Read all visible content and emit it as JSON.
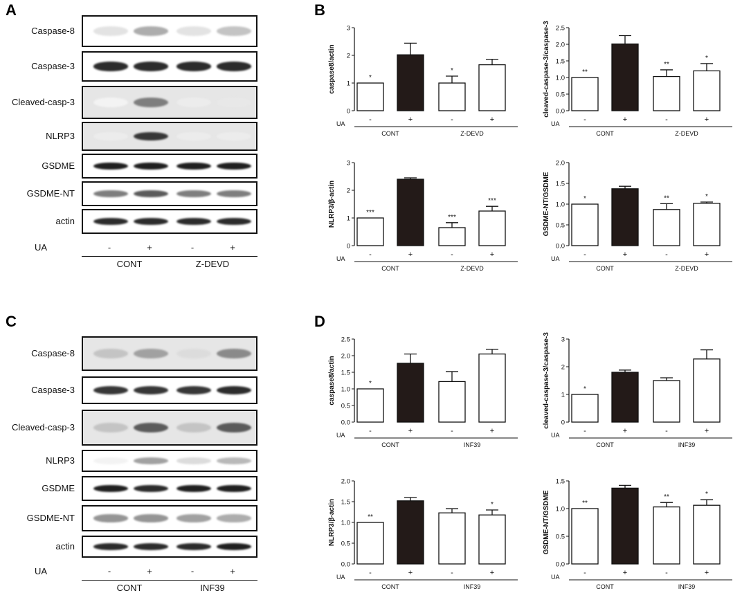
{
  "panels": {
    "A": "A",
    "B": "B",
    "C": "C",
    "D": "D"
  },
  "blots": [
    {
      "id": "A",
      "rows": [
        "Caspase-8",
        "Caspase-3",
        "Cleaved-casp-3",
        "NLRP3",
        "GSDME",
        "GSDME-NT",
        "actin"
      ],
      "treatment_label": "UA",
      "signs": [
        "-",
        "+",
        "-",
        "+"
      ],
      "groups": [
        "CONT",
        "Z-DEVD"
      ]
    },
    {
      "id": "C",
      "rows": [
        "Caspase-8",
        "Caspase-3",
        "Cleaved-casp-3",
        "NLRP3",
        "GSDME",
        "GSDME-NT",
        "actin"
      ],
      "treatment_label": "UA",
      "signs": [
        "-",
        "+",
        "-",
        "+"
      ],
      "groups": [
        "CONT",
        "INF39"
      ]
    }
  ],
  "chart_data": [
    {
      "panel": "B",
      "type": "bar",
      "ylabel": "caspase8/actin",
      "ylim": [
        0,
        3
      ],
      "yticks": [
        "0",
        "1",
        "2",
        "3"
      ],
      "treatment_label": "UA",
      "signs": [
        "-",
        "+",
        "-",
        "+"
      ],
      "groups": [
        "CONT",
        "Z-DEVD"
      ],
      "values": [
        1.0,
        2.02,
        1.0,
        1.66
      ],
      "errors": [
        0,
        0.42,
        0.25,
        0.2
      ],
      "significance": [
        "*",
        "",
        "*",
        ""
      ],
      "bar_fill": [
        "#ffffff",
        "#231a18",
        "#ffffff",
        "#ffffff"
      ]
    },
    {
      "panel": "B",
      "type": "bar",
      "ylabel": "cleaved-caspase-3/caspase-3",
      "ylim": [
        0,
        2.5
      ],
      "yticks": [
        "0.0",
        "0.5",
        "1.0",
        "1.5",
        "2.0",
        "2.5"
      ],
      "treatment_label": "UA",
      "signs": [
        "-",
        "+",
        "-",
        "+"
      ],
      "groups": [
        "CONT",
        "Z-DEVD"
      ],
      "values": [
        1.0,
        2.01,
        1.03,
        1.2
      ],
      "errors": [
        0,
        0.25,
        0.2,
        0.22
      ],
      "significance": [
        "**",
        "",
        "**",
        "*"
      ],
      "bar_fill": [
        "#ffffff",
        "#231a18",
        "#ffffff",
        "#ffffff"
      ]
    },
    {
      "panel": "B",
      "type": "bar",
      "ylabel": "NLRP3/β-actin",
      "ylim": [
        0,
        3
      ],
      "yticks": [
        "0",
        "1",
        "2",
        "3"
      ],
      "treatment_label": "UA",
      "signs": [
        "-",
        "+",
        "-",
        "+"
      ],
      "groups": [
        "CONT",
        "Z-DEVD"
      ],
      "values": [
        1.0,
        2.4,
        0.65,
        1.25
      ],
      "errors": [
        0,
        0.05,
        0.18,
        0.17
      ],
      "significance": [
        "***",
        "",
        "***",
        "***"
      ],
      "bar_fill": [
        "#ffffff",
        "#231a18",
        "#ffffff",
        "#ffffff"
      ]
    },
    {
      "panel": "B",
      "type": "bar",
      "ylabel": "GSDME-NT/GSDME",
      "ylim": [
        0,
        2.0
      ],
      "yticks": [
        "0.0",
        "0.5",
        "1.0",
        "1.5",
        "2.0"
      ],
      "treatment_label": "UA",
      "signs": [
        "-",
        "+",
        "-",
        "+"
      ],
      "groups": [
        "CONT",
        "Z-DEVD"
      ],
      "values": [
        1.0,
        1.37,
        0.87,
        1.02
      ],
      "errors": [
        0,
        0.06,
        0.14,
        0.03
      ],
      "significance": [
        "*",
        "",
        "**",
        "*"
      ],
      "bar_fill": [
        "#ffffff",
        "#231a18",
        "#ffffff",
        "#ffffff"
      ]
    },
    {
      "panel": "D",
      "type": "bar",
      "ylabel": "caspase8/actin",
      "ylim": [
        0,
        2.5
      ],
      "yticks": [
        "0.0",
        "0.5",
        "1.0",
        "1.5",
        "2.0",
        "2.5"
      ],
      "treatment_label": "UA",
      "signs": [
        "-",
        "+",
        "-",
        "+"
      ],
      "groups": [
        "CONT",
        "INF39"
      ],
      "values": [
        1.0,
        1.77,
        1.22,
        2.05
      ],
      "errors": [
        0,
        0.28,
        0.3,
        0.14
      ],
      "significance": [
        "*",
        "",
        "",
        ""
      ],
      "bar_fill": [
        "#ffffff",
        "#231a18",
        "#ffffff",
        "#ffffff"
      ]
    },
    {
      "panel": "D",
      "type": "bar",
      "ylabel": "cleaved-caspase-3/caspase-3",
      "ylim": [
        0,
        3
      ],
      "yticks": [
        "0",
        "1",
        "2",
        "3"
      ],
      "treatment_label": "UA",
      "signs": [
        "-",
        "+",
        "-",
        "+"
      ],
      "groups": [
        "CONT",
        "INF39"
      ],
      "values": [
        1.0,
        1.8,
        1.5,
        2.28
      ],
      "errors": [
        0,
        0.08,
        0.1,
        0.33
      ],
      "significance": [
        "*",
        "",
        "",
        ""
      ],
      "bar_fill": [
        "#ffffff",
        "#231a18",
        "#ffffff",
        "#ffffff"
      ]
    },
    {
      "panel": "D",
      "type": "bar",
      "ylabel": "NLRP3/β-actin",
      "ylim": [
        0,
        2.0
      ],
      "yticks": [
        "0.0",
        "0.5",
        "1.0",
        "1.5",
        "2.0"
      ],
      "treatment_label": "UA",
      "signs": [
        "-",
        "+",
        "-",
        "+"
      ],
      "groups": [
        "CONT",
        "INF39"
      ],
      "values": [
        1.0,
        1.52,
        1.23,
        1.18
      ],
      "errors": [
        0,
        0.08,
        0.1,
        0.12
      ],
      "significance": [
        "**",
        "",
        "",
        "*"
      ],
      "bar_fill": [
        "#ffffff",
        "#231a18",
        "#ffffff",
        "#ffffff"
      ]
    },
    {
      "panel": "D",
      "type": "bar",
      "ylabel": "GSDME-NT/GSDME",
      "ylim": [
        0,
        1.5
      ],
      "yticks": [
        "0.0",
        "0.5",
        "1.0",
        "1.5"
      ],
      "treatment_label": "UA",
      "signs": [
        "-",
        "+",
        "-",
        "+"
      ],
      "groups": [
        "CONT",
        "INF39"
      ],
      "values": [
        1.0,
        1.37,
        1.03,
        1.06
      ],
      "errors": [
        0,
        0.05,
        0.08,
        0.1
      ],
      "significance": [
        "**",
        "",
        "**",
        "*"
      ],
      "bar_fill": [
        "#ffffff",
        "#231a18",
        "#ffffff",
        "#ffffff"
      ]
    }
  ],
  "band_intensity": {
    "A": [
      [
        0.12,
        0.35,
        0.12,
        0.25
      ],
      [
        0.9,
        0.9,
        0.9,
        0.9
      ],
      [
        0.05,
        0.55,
        0.08,
        0.1
      ],
      [
        0.08,
        0.85,
        0.08,
        0.08
      ],
      [
        0.95,
        0.95,
        0.95,
        0.95
      ],
      [
        0.55,
        0.7,
        0.55,
        0.55
      ],
      [
        0.9,
        0.9,
        0.9,
        0.9
      ]
    ],
    "C": [
      [
        0.25,
        0.4,
        0.15,
        0.5
      ],
      [
        0.85,
        0.85,
        0.85,
        0.9
      ],
      [
        0.25,
        0.7,
        0.25,
        0.7
      ],
      [
        0.05,
        0.4,
        0.15,
        0.3
      ],
      [
        0.95,
        0.9,
        0.95,
        0.95
      ],
      [
        0.45,
        0.45,
        0.4,
        0.35
      ],
      [
        0.9,
        0.9,
        0.9,
        0.95
      ]
    ]
  }
}
